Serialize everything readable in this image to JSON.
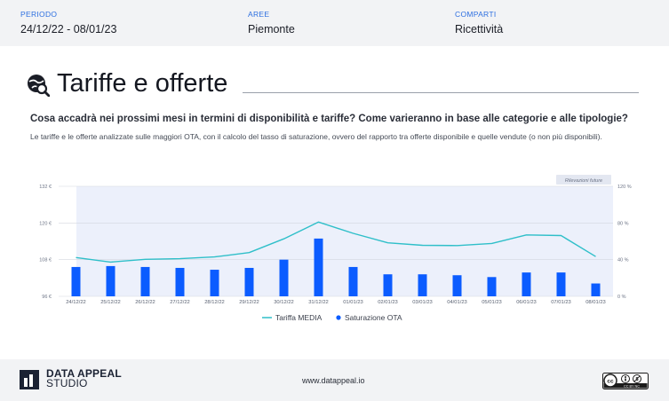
{
  "header": {
    "periodo_label": "PERIODO",
    "periodo_value": "24/12/22 - 08/01/23",
    "aree_label": "AREE",
    "aree_value": "Piemonte",
    "comparti_label": "COMPARTI",
    "comparti_value": "Ricettività"
  },
  "section": {
    "title": "Tariffe e offerte",
    "question": "Cosa accadrà nei prossimi mesi in termini di disponibilità e tariffe? Come varieranno in base alle categorie e alle tipologie?",
    "description": "Le tariffe e le offerte analizzate sulle maggiori OTA, con il calcolo del tasso di saturazione, ovvero del rapporto tra offerte disponibile e quelle vendute (o non più disponibili)."
  },
  "chart_data": {
    "type": "bar+line",
    "categories": [
      "24/12/22",
      "25/12/22",
      "26/12/22",
      "27/12/22",
      "28/12/22",
      "29/12/22",
      "30/12/22",
      "31/12/22",
      "01/01/23",
      "02/01/23",
      "03/01/23",
      "04/01/23",
      "05/01/23",
      "06/01/23",
      "07/01/23",
      "08/01/23"
    ],
    "series": [
      {
        "name": "Tariffa MEDIA",
        "kind": "line",
        "axis": "left",
        "color": "#2fbfc9",
        "values": [
          108.7,
          107.2,
          108.1,
          108.3,
          108.9,
          110.3,
          114.8,
          120.3,
          116.6,
          113.5,
          112.7,
          112.6,
          113.3,
          116.1,
          115.9,
          109.0
        ]
      },
      {
        "name": "Saturazione OTA",
        "kind": "bar",
        "axis": "right",
        "color": "#0b5cff",
        "values": [
          32,
          33,
          32,
          31,
          29,
          31,
          40,
          63,
          32,
          24,
          24,
          23,
          21,
          26,
          26,
          14
        ]
      }
    ],
    "y_left": {
      "ticks": [
        "96 €",
        "108 €",
        "120 €",
        "132 €"
      ],
      "min": 96,
      "max": 132
    },
    "y_right": {
      "ticks": [
        "0 %",
        "40 %",
        "80 %",
        "120 %"
      ],
      "min": 0,
      "max": 120
    },
    "future_label": "Rilevazioni future",
    "grid": true,
    "legend": "bottom-center"
  },
  "footer": {
    "brand_line1": "DATA APPEAL",
    "brand_line2": "STUDIO",
    "website": "www.datappeal.io",
    "license": "CC BY NC"
  }
}
